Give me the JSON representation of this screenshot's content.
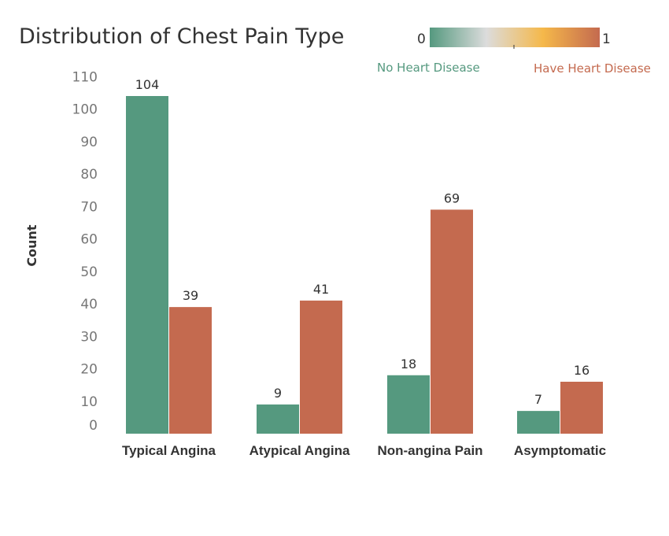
{
  "chart_data": {
    "type": "bar",
    "title": "Distribution of Chest Pain Type",
    "ylabel": "Count",
    "xlabel": "",
    "categories": [
      "Typical Angina",
      "Atypical Angina",
      "Non-angina Pain",
      "Asymptomatic"
    ],
    "series": [
      {
        "name": "No Heart Disease",
        "color": "#55997f",
        "values": [
          104,
          9,
          18,
          7
        ]
      },
      {
        "name": "Have Heart Disease",
        "color": "#c46a4f",
        "values": [
          39,
          41,
          69,
          16
        ]
      }
    ],
    "yticks": [
      "110",
      "100",
      "90",
      "80",
      "70",
      "60",
      "50",
      "40",
      "30",
      "20",
      "10",
      "0"
    ],
    "ylim": [
      0,
      110
    ],
    "grid": false,
    "legend": {
      "type": "color-gradient",
      "placement": "top-right",
      "min_label": "0",
      "max_label": "1",
      "colors": [
        "#55997f",
        "#dcdcdc",
        "#f5b84a",
        "#c46a4f"
      ]
    }
  }
}
